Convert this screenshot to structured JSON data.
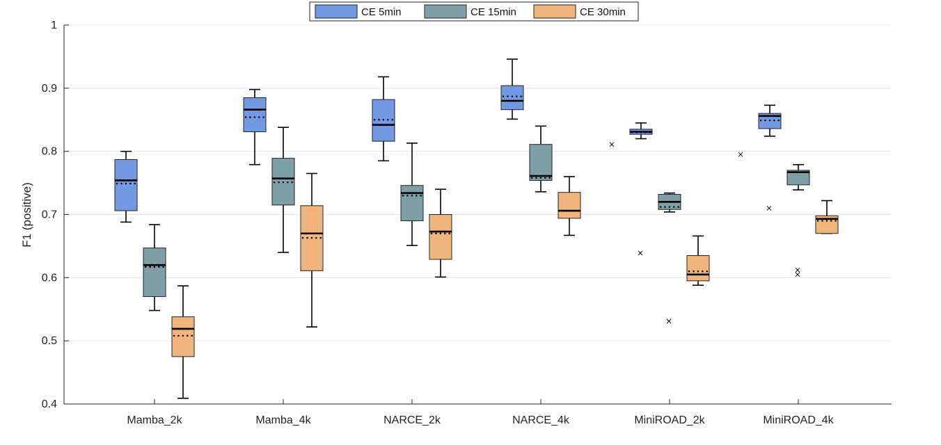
{
  "chart_data": {
    "type": "box",
    "title": "",
    "xlabel": "",
    "ylabel": "F1 (positive)",
    "ylim": [
      0.4,
      1.0
    ],
    "yticks": [
      0.4,
      0.5,
      0.6,
      0.7,
      0.8,
      0.9,
      1.0
    ],
    "ytick_labels": [
      "0.4",
      "0.5",
      "0.6",
      "0.7",
      "0.8",
      "0.9",
      "1"
    ],
    "grid": "horizontal",
    "legend_position": "top-center",
    "categories": [
      "Mamba_2k",
      "Mamba_4k",
      "NARCE_2k",
      "NARCE_4k",
      "MiniROAD_2k",
      "MiniROAD_4k"
    ],
    "series": [
      {
        "name": "CE 5min",
        "color": "#7399e3",
        "boxes": [
          {
            "whisker_low": 0.688,
            "q1": 0.706,
            "median": 0.754,
            "mean": 0.749,
            "q3": 0.787,
            "whisker_high": 0.8,
            "outliers": []
          },
          {
            "whisker_low": 0.779,
            "q1": 0.831,
            "median": 0.866,
            "mean": 0.854,
            "q3": 0.885,
            "whisker_high": 0.898,
            "outliers": []
          },
          {
            "whisker_low": 0.785,
            "q1": 0.816,
            "median": 0.842,
            "mean": 0.85,
            "q3": 0.882,
            "whisker_high": 0.918,
            "outliers": []
          },
          {
            "whisker_low": 0.851,
            "q1": 0.866,
            "median": 0.88,
            "mean": 0.887,
            "q3": 0.904,
            "whisker_high": 0.946,
            "outliers": []
          },
          {
            "whisker_low": 0.82,
            "q1": 0.827,
            "median": 0.831,
            "mean": 0.83,
            "q3": 0.835,
            "whisker_high": 0.845,
            "outliers": [
              0.811
            ]
          },
          {
            "whisker_low": 0.824,
            "q1": 0.836,
            "median": 0.856,
            "mean": 0.849,
            "q3": 0.86,
            "whisker_high": 0.873,
            "outliers": [
              0.795
            ]
          }
        ]
      },
      {
        "name": "CE 15min",
        "color": "#7e9fa6",
        "boxes": [
          {
            "whisker_low": 0.548,
            "q1": 0.57,
            "median": 0.62,
            "mean": 0.617,
            "q3": 0.647,
            "whisker_high": 0.684,
            "outliers": []
          },
          {
            "whisker_low": 0.64,
            "q1": 0.715,
            "median": 0.757,
            "mean": 0.751,
            "q3": 0.789,
            "whisker_high": 0.838,
            "outliers": []
          },
          {
            "whisker_low": 0.651,
            "q1": 0.69,
            "median": 0.734,
            "mean": 0.73,
            "q3": 0.746,
            "whisker_high": 0.813,
            "outliers": []
          },
          {
            "whisker_low": 0.736,
            "q1": 0.754,
            "median": 0.761,
            "mean": 0.758,
            "q3": 0.811,
            "whisker_high": 0.84,
            "outliers": []
          },
          {
            "whisker_low": 0.704,
            "q1": 0.708,
            "median": 0.72,
            "mean": 0.712,
            "q3": 0.732,
            "whisker_high": 0.734,
            "outliers": [
              0.639
            ]
          },
          {
            "whisker_low": 0.739,
            "q1": 0.747,
            "median": 0.767,
            "mean": 0.767,
            "q3": 0.77,
            "whisker_high": 0.779,
            "outliers": [
              0.71
            ]
          }
        ]
      },
      {
        "name": "CE 30min",
        "color": "#efb57c",
        "boxes": [
          {
            "whisker_low": 0.409,
            "q1": 0.475,
            "median": 0.519,
            "mean": 0.508,
            "q3": 0.538,
            "whisker_high": 0.587,
            "outliers": []
          },
          {
            "whisker_low": 0.522,
            "q1": 0.611,
            "median": 0.67,
            "mean": 0.663,
            "q3": 0.714,
            "whisker_high": 0.765,
            "outliers": []
          },
          {
            "whisker_low": 0.601,
            "q1": 0.629,
            "median": 0.673,
            "mean": 0.67,
            "q3": 0.7,
            "whisker_high": 0.74,
            "outliers": []
          },
          {
            "whisker_low": 0.667,
            "q1": 0.694,
            "median": 0.706,
            "mean": 0.706,
            "q3": 0.735,
            "whisker_high": 0.76,
            "outliers": []
          },
          {
            "whisker_low": 0.588,
            "q1": 0.595,
            "median": 0.605,
            "mean": 0.61,
            "q3": 0.635,
            "whisker_high": 0.666,
            "outliers": [
              0.531
            ]
          },
          {
            "whisker_low": 0.67,
            "q1": 0.67,
            "median": 0.693,
            "mean": 0.69,
            "q3": 0.698,
            "whisker_high": 0.722,
            "outliers": [
              0.612,
              0.605
            ]
          }
        ]
      }
    ]
  }
}
